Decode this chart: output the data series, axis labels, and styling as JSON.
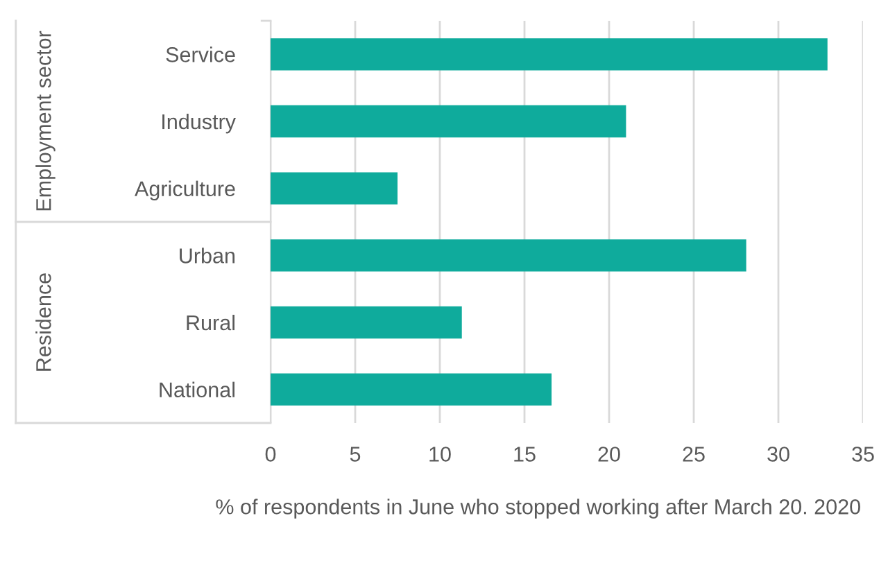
{
  "chart_data": {
    "type": "bar",
    "orientation": "horizontal",
    "categories": [
      "Service",
      "Industry",
      "Agriculture",
      "Urban",
      "Rural",
      "National"
    ],
    "values": [
      32.9,
      21.0,
      7.5,
      28.1,
      11.3,
      16.6
    ],
    "color": "#0fab9c",
    "xlim": [
      0,
      35
    ],
    "xticks": [
      0,
      5,
      10,
      15,
      20,
      25,
      30,
      35
    ],
    "xlabel": "% of respondents in June who stopped working after March 20. 2020",
    "annotations": [
      "Employment sector",
      "Residence"
    ],
    "grid": "x"
  }
}
